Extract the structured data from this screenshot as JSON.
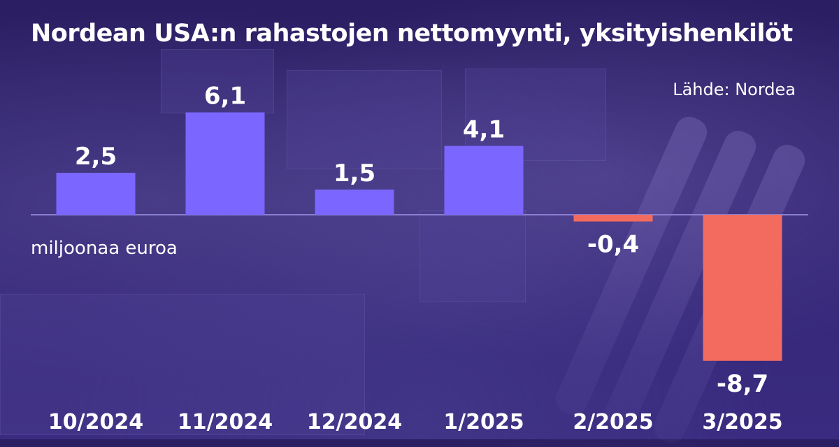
{
  "title": "Nordean USA:n rahastojen nettomyynti, yksityishenkilöt",
  "source": "Lähde: Nordea",
  "unit": "miljoonaa euroa",
  "colors": {
    "positive": "#7b66ff",
    "negative": "#f26b5e",
    "axis": "#8a7fd0",
    "background": "#2f2270"
  },
  "chart_data": {
    "type": "bar",
    "title": "Nordean USA:n rahastojen nettomyynti, yksityishenkilöt",
    "xlabel": "",
    "ylabel": "miljoonaa euroa",
    "categories": [
      "10/2024",
      "11/2024",
      "12/2024",
      "1/2025",
      "2/2025",
      "3/2025"
    ],
    "values": [
      2.5,
      6.1,
      1.5,
      4.1,
      -0.4,
      -8.7
    ],
    "value_labels": [
      "2,5",
      "6,1",
      "1,5",
      "4,1",
      "-0,4",
      "-8,7"
    ],
    "ylim": [
      -8.7,
      6.1
    ],
    "grid": false,
    "legend": "none"
  }
}
